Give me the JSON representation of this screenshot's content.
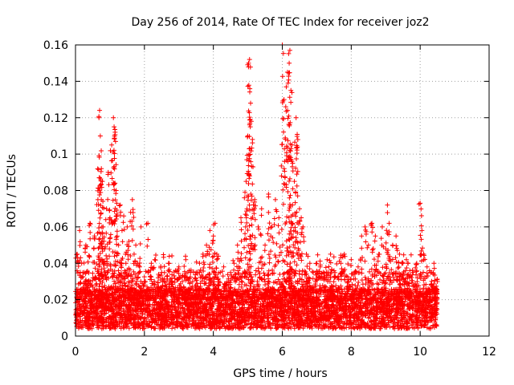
{
  "chart_data": {
    "type": "scatter",
    "title": "Day 256 of 2014, Rate Of TEC Index for receiver joz2",
    "xlabel": "GPS time / hours",
    "ylabel": "ROTI / TECUs",
    "xlim": [
      0,
      12
    ],
    "ylim": [
      0,
      0.16
    ],
    "xticks": [
      0,
      2,
      4,
      6,
      8,
      10,
      12
    ],
    "yticks": [
      0,
      0.02,
      0.04,
      0.06,
      0.08,
      0.1,
      0.12,
      0.14,
      0.16
    ],
    "xtick_labels": [
      "0",
      "2",
      "4",
      "6",
      "8",
      "10",
      "12"
    ],
    "ytick_labels": [
      "0",
      "0.02",
      "0.04",
      "0.06",
      "0.08",
      "0.1",
      "0.12",
      "0.14",
      "0.16"
    ],
    "grid": true,
    "marker": "+",
    "data_range_hours": [
      0,
      10.5
    ],
    "series": [
      {
        "name": "joz2",
        "color": "#ff0000",
        "x": [
          0.05,
          0.12,
          0.18,
          0.25,
          0.3,
          0.35,
          0.42,
          0.48,
          0.55,
          0.6,
          0.65,
          0.68,
          0.7,
          0.72,
          0.75,
          0.78,
          0.8,
          0.85,
          0.9,
          0.95,
          1.0,
          1.05,
          1.1,
          1.12,
          1.15,
          1.18,
          1.2,
          1.25,
          1.3,
          1.35,
          1.4,
          1.45,
          1.5,
          1.55,
          1.6,
          1.65,
          1.7,
          1.75,
          1.8,
          1.85,
          1.9,
          2.0,
          2.1,
          2.2,
          2.3,
          2.4,
          2.5,
          2.6,
          2.7,
          2.8,
          2.9,
          3.0,
          3.1,
          3.2,
          3.3,
          3.4,
          3.5,
          3.6,
          3.7,
          3.8,
          3.9,
          4.0,
          4.05,
          4.1,
          4.2,
          4.3,
          4.4,
          4.5,
          4.6,
          4.7,
          4.8,
          4.9,
          4.95,
          5.0,
          5.02,
          5.05,
          5.08,
          5.1,
          5.15,
          5.2,
          5.3,
          5.4,
          5.5,
          5.6,
          5.7,
          5.8,
          5.9,
          6.0,
          6.05,
          6.1,
          6.15,
          6.2,
          6.22,
          6.25,
          6.28,
          6.3,
          6.35,
          6.4,
          6.45,
          6.5,
          6.55,
          6.6,
          6.7,
          6.8,
          6.9,
          7.0,
          7.1,
          7.2,
          7.3,
          7.4,
          7.5,
          7.6,
          7.7,
          7.8,
          7.9,
          8.0,
          8.1,
          8.2,
          8.3,
          8.4,
          8.5,
          8.6,
          8.7,
          8.8,
          8.9,
          9.0,
          9.05,
          9.1,
          9.2,
          9.3,
          9.4,
          9.5,
          9.6,
          9.7,
          9.8,
          9.9,
          10.0,
          10.05,
          10.1,
          10.2,
          10.3,
          10.4,
          10.5
        ],
        "y": [
          0.045,
          0.058,
          0.04,
          0.035,
          0.05,
          0.03,
          0.062,
          0.028,
          0.055,
          0.032,
          0.075,
          0.12,
          0.124,
          0.11,
          0.092,
          0.085,
          0.06,
          0.048,
          0.07,
          0.09,
          0.065,
          0.105,
          0.12,
          0.115,
          0.112,
          0.08,
          0.066,
          0.05,
          0.072,
          0.058,
          0.066,
          0.045,
          0.06,
          0.052,
          0.068,
          0.075,
          0.045,
          0.05,
          0.04,
          0.035,
          0.06,
          0.03,
          0.062,
          0.04,
          0.042,
          0.032,
          0.035,
          0.028,
          0.04,
          0.03,
          0.036,
          0.038,
          0.03,
          0.042,
          0.036,
          0.03,
          0.035,
          0.04,
          0.045,
          0.05,
          0.058,
          0.055,
          0.062,
          0.045,
          0.035,
          0.038,
          0.03,
          0.035,
          0.04,
          0.05,
          0.065,
          0.076,
          0.085,
          0.11,
          0.15,
          0.152,
          0.128,
          0.118,
          0.093,
          0.075,
          0.06,
          0.07,
          0.05,
          0.078,
          0.06,
          0.075,
          0.065,
          0.16,
          0.13,
          0.126,
          0.145,
          0.15,
          0.157,
          0.135,
          0.105,
          0.095,
          0.085,
          0.12,
          0.108,
          0.07,
          0.065,
          0.06,
          0.045,
          0.04,
          0.035,
          0.04,
          0.038,
          0.035,
          0.042,
          0.045,
          0.036,
          0.032,
          0.04,
          0.045,
          0.03,
          0.042,
          0.035,
          0.038,
          0.055,
          0.06,
          0.05,
          0.062,
          0.055,
          0.045,
          0.06,
          0.048,
          0.072,
          0.062,
          0.05,
          0.055,
          0.045,
          0.04,
          0.042,
          0.036,
          0.035,
          0.04,
          0.073,
          0.058,
          0.045,
          0.038,
          0.035,
          0.04,
          0.03
        ]
      }
    ]
  }
}
